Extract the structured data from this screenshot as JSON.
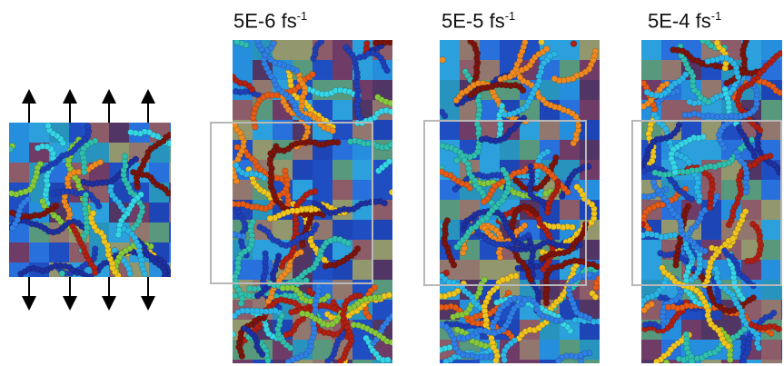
{
  "panels": [
    {
      "id": "initial",
      "label_base": "",
      "label_exp": ""
    },
    {
      "id": "rate1",
      "label_base": "5E-6 fs",
      "label_exp": "-1"
    },
    {
      "id": "rate2",
      "label_base": "5E-5 fs",
      "label_exp": "-1"
    },
    {
      "id": "rate3",
      "label_base": "5E-4 fs",
      "label_exp": "-1"
    }
  ],
  "palette": [
    "#1f3fb8",
    "#2f7fe6",
    "#2bb6e8",
    "#35d6e6",
    "#2fbfae",
    "#86c93a",
    "#f0c51d",
    "#f08a1e",
    "#e55a14",
    "#b01f12",
    "#7a140c",
    "#1e2f9f"
  ]
}
